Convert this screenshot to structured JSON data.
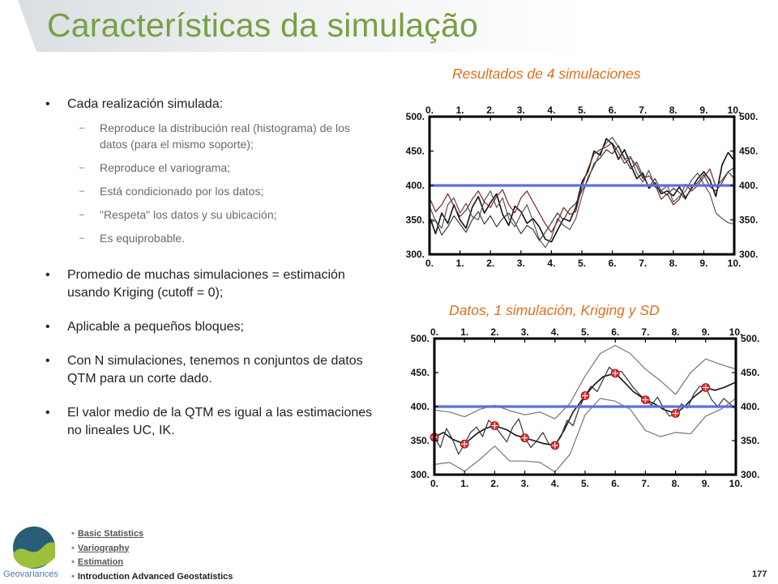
{
  "slide": {
    "title": "Características da simulação",
    "page_number": "177"
  },
  "bullets": [
    {
      "text": "Cada realización simulada:",
      "sub": [
        "Reproduce la distribución real (histograma) de los datos (para el mismo soporte);",
        "Reproduce el variograma;",
        "Está condicionado por los datos;",
        "\"Respeta\" los datos y su ubicación;",
        "Es equiprobable."
      ]
    },
    {
      "text": "Promedio de muchas simulaciones = estimación usando Kriging (cutoff = 0);",
      "sub": []
    },
    {
      "text": "Aplicable a pequeños bloques;",
      "sub": []
    },
    {
      "text": "Con N simulaciones, tenemos n conjuntos de datos QTM para un corte dado.",
      "sub": []
    },
    {
      "text": "El valor medio de la QTM es igual a las estimaciones no lineales UC, IK.",
      "sub": []
    }
  ],
  "footer": {
    "logo_text": "Geovariances",
    "nav": [
      {
        "label": "Basic Statistics",
        "link": true
      },
      {
        "label": "Variography",
        "link": true
      },
      {
        "label": "Estimation",
        "link": true
      },
      {
        "label": "Introduction Advanced Geostatistics",
        "link": false
      }
    ]
  },
  "colors": {
    "title": "#77a043",
    "chart_title": "#e06f1e",
    "mean_line": "#5b6fe0",
    "data_points": "#e03030"
  },
  "chart_data": [
    {
      "type": "line",
      "title": "Resultados de 4 simulaciones",
      "x_ticks": [
        "0.",
        "1.",
        "2.",
        "3.",
        "4.",
        "5.",
        "6.",
        "7.",
        "8.",
        "9.",
        "10."
      ],
      "y_ticks": [
        "300.",
        "350.",
        "400.",
        "450.",
        "500."
      ],
      "xlim": [
        0,
        10
      ],
      "ylim": [
        300,
        500
      ],
      "mean_line": 400,
      "series": [
        {
          "color": "#111111",
          "x": [
            0,
            0.2,
            0.4,
            0.6,
            0.8,
            1,
            1.2,
            1.4,
            1.6,
            1.8,
            2,
            2.2,
            2.4,
            2.6,
            2.8,
            3,
            3.2,
            3.4,
            3.6,
            3.8,
            4,
            4.2,
            4.4,
            4.6,
            4.8,
            5,
            5.2,
            5.4,
            5.6,
            5.8,
            6,
            6.2,
            6.4,
            6.6,
            6.8,
            7,
            7.2,
            7.4,
            7.6,
            7.8,
            8,
            8.2,
            8.4,
            8.6,
            8.8,
            9,
            9.2,
            9.4,
            9.6,
            9.8,
            10
          ],
          "y": [
            355,
            330,
            360,
            345,
            372,
            350,
            338,
            368,
            384,
            360,
            375,
            388,
            358,
            342,
            370,
            362,
            345,
            352,
            340,
            322,
            318,
            335,
            352,
            348,
            368,
            405,
            420,
            450,
            444,
            468,
            460,
            438,
            452,
            430,
            410,
            418,
            396,
            404,
            388,
            392,
            385,
            398,
            382,
            396,
            410,
            420,
            408,
            384,
            430,
            448,
            436
          ]
        },
        {
          "color": "#555555",
          "x": [
            0,
            0.2,
            0.4,
            0.6,
            0.8,
            1,
            1.2,
            1.4,
            1.6,
            1.8,
            2,
            2.2,
            2.4,
            2.6,
            2.8,
            3,
            3.2,
            3.4,
            3.6,
            3.8,
            4,
            4.2,
            4.4,
            4.6,
            4.8,
            5,
            5.2,
            5.4,
            5.6,
            5.8,
            6,
            6.2,
            6.4,
            6.6,
            6.8,
            7,
            7.2,
            7.4,
            7.6,
            7.8,
            8,
            8.2,
            8.4,
            8.6,
            8.8,
            9,
            9.2,
            9.4,
            9.6,
            9.8,
            10
          ],
          "y": [
            370,
            348,
            338,
            372,
            382,
            360,
            374,
            355,
            350,
            378,
            392,
            368,
            382,
            352,
            340,
            358,
            372,
            348,
            322,
            310,
            324,
            352,
            342,
            336,
            352,
            384,
            412,
            428,
            448,
            462,
            470,
            456,
            438,
            442,
            418,
            405,
            422,
            398,
            392,
            400,
            376,
            384,
            392,
            408,
            418,
            402,
            388,
            360,
            352,
            346,
            344
          ]
        },
        {
          "color": "#7a2a20",
          "x": [
            0,
            0.2,
            0.4,
            0.6,
            0.8,
            1,
            1.2,
            1.4,
            1.6,
            1.8,
            2,
            2.2,
            2.4,
            2.6,
            2.8,
            3,
            3.2,
            3.4,
            3.6,
            3.8,
            4,
            4.2,
            4.4,
            4.6,
            4.8,
            5,
            5.2,
            5.4,
            5.6,
            5.8,
            6,
            6.2,
            6.4,
            6.6,
            6.8,
            7,
            7.2,
            7.4,
            7.6,
            7.8,
            8,
            8.2,
            8.4,
            8.6,
            8.8,
            9,
            9.2,
            9.4,
            9.6,
            9.8,
            10
          ],
          "y": [
            382,
            362,
            372,
            388,
            370,
            355,
            364,
            380,
            392,
            376,
            368,
            384,
            394,
            372,
            360,
            382,
            392,
            376,
            360,
            344,
            332,
            348,
            368,
            358,
            362,
            398,
            424,
            446,
            452,
            456,
            462,
            448,
            432,
            440,
            428,
            410,
            414,
            402,
            380,
            388,
            372,
            380,
            402,
            392,
            400,
            412,
            424,
            398,
            408,
            420,
            410
          ]
        },
        {
          "color": "#3a3a3a",
          "x": [
            0,
            0.2,
            0.4,
            0.6,
            0.8,
            1,
            1.2,
            1.4,
            1.6,
            1.8,
            2,
            2.2,
            2.4,
            2.6,
            2.8,
            3,
            3.2,
            3.4,
            3.6,
            3.8,
            4,
            4.2,
            4.4,
            4.6,
            4.8,
            5,
            5.2,
            5.4,
            5.6,
            5.8,
            6,
            6.2,
            6.4,
            6.6,
            6.8,
            7,
            7.2,
            7.4,
            7.6,
            7.8,
            8,
            8.2,
            8.4,
            8.6,
            8.8,
            9,
            9.2,
            9.4,
            9.6,
            9.8,
            10
          ],
          "y": [
            345,
            350,
            328,
            340,
            356,
            344,
            332,
            350,
            362,
            344,
            356,
            340,
            352,
            360,
            346,
            330,
            342,
            336,
            320,
            332,
            346,
            360,
            350,
            366,
            374,
            392,
            408,
            432,
            440,
            452,
            446,
            458,
            440,
            424,
            434,
            414,
            398,
            410,
            392,
            386,
            396,
            390,
            380,
            398,
            404,
            416,
            398,
            392,
            404,
            420,
            426
          ]
        }
      ]
    },
    {
      "type": "line",
      "title": "Datos, 1 simulación, Kriging y SD",
      "x_ticks": [
        "0.",
        "1.",
        "2.",
        "3.",
        "4.",
        "5.",
        "6.",
        "7.",
        "8.",
        "9.",
        "10."
      ],
      "y_ticks": [
        "300.",
        "350.",
        "400.",
        "450.",
        "500."
      ],
      "xlim": [
        0,
        10
      ],
      "ylim": [
        300,
        500
      ],
      "mean_line": 400,
      "data_points": {
        "x": [
          0,
          1,
          2,
          3,
          4,
          5,
          6,
          7,
          8,
          9
        ],
        "y": [
          355,
          345,
          372,
          354,
          343,
          416,
          449,
          410,
          390,
          428
        ]
      },
      "series": [
        {
          "color": "#111111",
          "x": [
            0,
            0.3,
            0.6,
            1,
            1.4,
            1.7,
            2,
            2.4,
            2.7,
            3,
            3.3,
            3.6,
            4,
            4.3,
            4.6,
            5,
            5.3,
            5.6,
            6,
            6.3,
            6.6,
            7,
            7.3,
            7.6,
            8,
            8.3,
            8.6,
            9,
            9.3,
            9.6,
            10
          ],
          "y": [
            355,
            362,
            352,
            345,
            360,
            368,
            372,
            366,
            358,
            354,
            350,
            346,
            343,
            365,
            392,
            416,
            432,
            444,
            449,
            436,
            422,
            410,
            404,
            396,
            390,
            400,
            414,
            428,
            424,
            428,
            436
          ]
        },
        {
          "color": "#333333",
          "x": [
            0,
            0.2,
            0.4,
            0.6,
            0.8,
            1,
            1.2,
            1.4,
            1.6,
            1.8,
            2,
            2.2,
            2.4,
            2.6,
            2.8,
            3,
            3.2,
            3.4,
            3.6,
            3.8,
            4,
            4.2,
            4.4,
            4.6,
            4.8,
            5,
            5.2,
            5.4,
            5.6,
            5.8,
            6,
            6.2,
            6.4,
            6.6,
            6.8,
            7,
            7.2,
            7.4,
            7.6,
            7.8,
            8,
            8.2,
            8.4,
            8.6,
            8.8,
            9,
            9.2,
            9.4,
            9.6,
            9.8,
            10
          ],
          "y": [
            355,
            340,
            368,
            352,
            330,
            345,
            362,
            370,
            356,
            380,
            372,
            360,
            348,
            370,
            382,
            354,
            340,
            350,
            362,
            345,
            343,
            356,
            380,
            372,
            398,
            416,
            430,
            422,
            440,
            458,
            449,
            452,
            440,
            428,
            418,
            410,
            402,
            414,
            398,
            386,
            390,
            404,
            398,
            418,
            430,
            428,
            410,
            400,
            412,
            404,
            396
          ]
        },
        {
          "color": "#777777",
          "x": [
            0,
            0.5,
            1,
            1.5,
            2,
            2.5,
            3,
            3.5,
            4,
            4.5,
            5,
            5.5,
            6,
            6.5,
            7,
            7.5,
            8,
            8.5,
            9,
            9.5,
            10
          ],
          "y": [
            395,
            392,
            385,
            396,
            402,
            394,
            388,
            392,
            382,
            405,
            445,
            478,
            490,
            478,
            455,
            438,
            418,
            450,
            470,
            462,
            455
          ]
        },
        {
          "color": "#777777",
          "x": [
            0,
            0.5,
            1,
            1.5,
            2,
            2.5,
            3,
            3.5,
            4,
            4.5,
            5,
            5.5,
            6,
            6.5,
            7,
            7.5,
            8,
            8.5,
            9,
            9.5,
            10
          ],
          "y": [
            315,
            318,
            305,
            322,
            342,
            320,
            320,
            318,
            304,
            330,
            388,
            412,
            408,
            396,
            365,
            356,
            362,
            360,
            386,
            396,
            412
          ]
        }
      ]
    }
  ]
}
